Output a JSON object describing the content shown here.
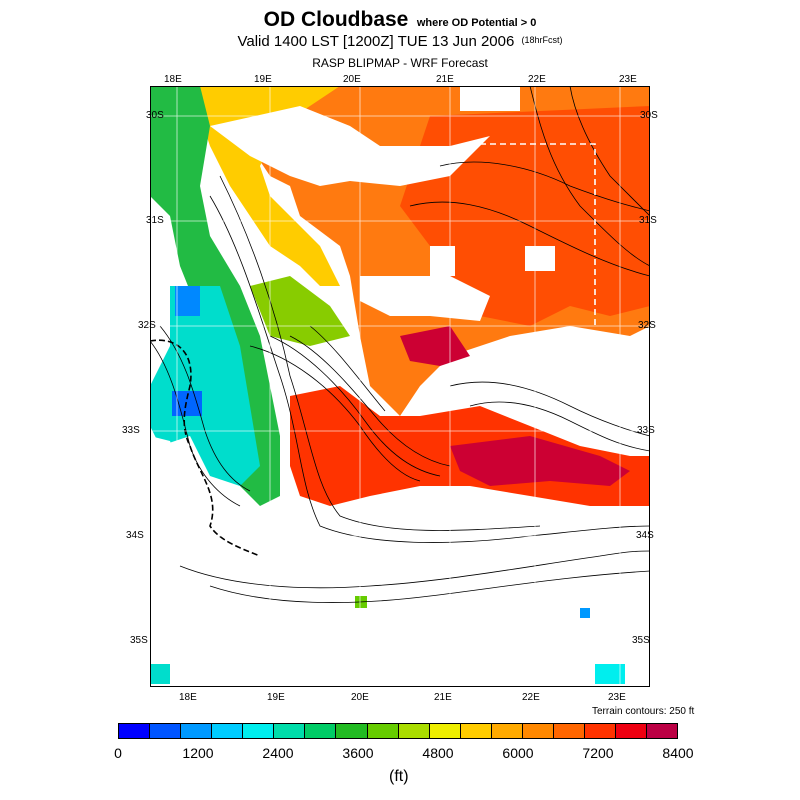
{
  "header": {
    "title": "OD Cloudbase",
    "title_qualifier": "where OD Potential > 0",
    "valid_line": "Valid 1400 LST [1200Z] TUE 13 Jun 2006",
    "forecast_hours": "(18hrFcst)",
    "source_line": "RASP BLIPMAP - WRF Forecast"
  },
  "map": {
    "top_lon_ticks": [
      "18E",
      "19E",
      "20E",
      "21E",
      "22E",
      "23E"
    ],
    "bottom_lon_ticks": [
      "18E",
      "19E",
      "20E",
      "21E",
      "22E",
      "23E"
    ],
    "left_lat_ticks": [
      "30S",
      "31S",
      "32S",
      "33S",
      "34S",
      "35S"
    ],
    "right_lat_ticks": [
      "30S",
      "31S",
      "32S",
      "33S",
      "34S",
      "35S"
    ],
    "terrain_note": "Terrain contours: 250 ft"
  },
  "colorbar": {
    "colors": [
      "#0000ff",
      "#0055ff",
      "#0099ff",
      "#00ccff",
      "#00eeee",
      "#00ddaa",
      "#00cc66",
      "#22bb22",
      "#66cc00",
      "#aadd00",
      "#eeee00",
      "#ffcc00",
      "#ffaa00",
      "#ff8800",
      "#ff6600",
      "#ff3300",
      "#ee0011",
      "#bb0044"
    ],
    "labels": [
      "0",
      "1200",
      "2400",
      "3600",
      "4800",
      "6000",
      "7200",
      "8400"
    ],
    "units": "(ft)"
  }
}
